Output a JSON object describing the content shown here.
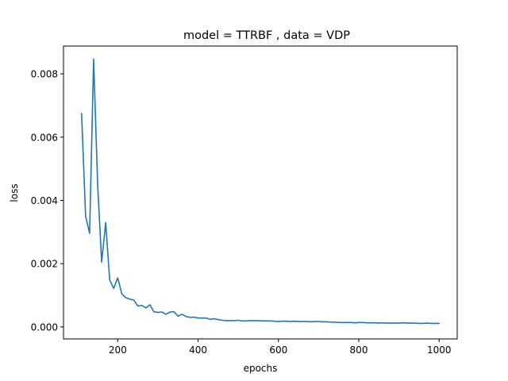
{
  "chart_data": {
    "type": "line",
    "title": "model = TTRBF , data = VDP",
    "xlabel": "epochs",
    "ylabel": "loss",
    "xlim": [
      65,
      1045
    ],
    "ylim": [
      -0.00038,
      0.00888
    ],
    "xticks": [
      200,
      400,
      600,
      800,
      1000
    ],
    "xtick_labels": [
      "200",
      "400",
      "600",
      "800",
      "1000"
    ],
    "yticks": [
      0.0,
      0.002,
      0.004,
      0.006,
      0.008
    ],
    "ytick_labels": [
      "0.000",
      "0.002",
      "0.004",
      "0.006",
      "0.008"
    ],
    "grid": false,
    "legend": "none",
    "series": [
      {
        "color": "#1f77b4",
        "x": [
          110,
          120,
          130,
          140,
          150,
          160,
          170,
          180,
          190,
          200,
          210,
          220,
          230,
          240,
          250,
          260,
          270,
          280,
          290,
          300,
          310,
          320,
          330,
          340,
          350,
          360,
          370,
          380,
          390,
          400,
          410,
          420,
          430,
          440,
          450,
          460,
          470,
          480,
          490,
          500,
          510,
          520,
          530,
          540,
          550,
          560,
          570,
          580,
          590,
          600,
          610,
          620,
          630,
          640,
          650,
          660,
          670,
          680,
          690,
          700,
          710,
          720,
          730,
          740,
          750,
          760,
          770,
          780,
          790,
          800,
          810,
          820,
          830,
          840,
          850,
          860,
          870,
          880,
          890,
          900,
          910,
          920,
          930,
          940,
          950,
          960,
          970,
          980,
          990,
          1000
        ],
        "y": [
          0.00675,
          0.0035,
          0.00296,
          0.00847,
          0.0045,
          0.00205,
          0.0033,
          0.00148,
          0.00122,
          0.00155,
          0.00105,
          0.00092,
          0.00088,
          0.00085,
          0.00066,
          0.00068,
          0.0006,
          0.0007,
          0.00048,
          0.00046,
          0.00047,
          0.0004,
          0.00047,
          0.00048,
          0.00034,
          0.0004,
          0.00033,
          0.0003,
          0.00031,
          0.00028,
          0.00028,
          0.00028,
          0.00024,
          0.00026,
          0.00023,
          0.00021,
          0.0002,
          0.0002,
          0.0002,
          0.00021,
          0.00019,
          0.00019,
          0.0002,
          0.0002,
          0.0002,
          0.00019,
          0.00019,
          0.00019,
          0.00018,
          0.00017,
          0.00018,
          0.00018,
          0.00017,
          0.00018,
          0.00017,
          0.00017,
          0.00017,
          0.00016,
          0.00017,
          0.00017,
          0.00016,
          0.00016,
          0.00015,
          0.00015,
          0.00014,
          0.00014,
          0.00014,
          0.00014,
          0.00013,
          0.00014,
          0.00014,
          0.00013,
          0.00013,
          0.00013,
          0.00012,
          0.00013,
          0.00012,
          0.00012,
          0.00012,
          0.00012,
          0.00013,
          0.00012,
          0.00012,
          0.00012,
          0.00011,
          0.00011,
          0.00012,
          0.00011,
          0.00011,
          0.00011
        ]
      }
    ]
  }
}
